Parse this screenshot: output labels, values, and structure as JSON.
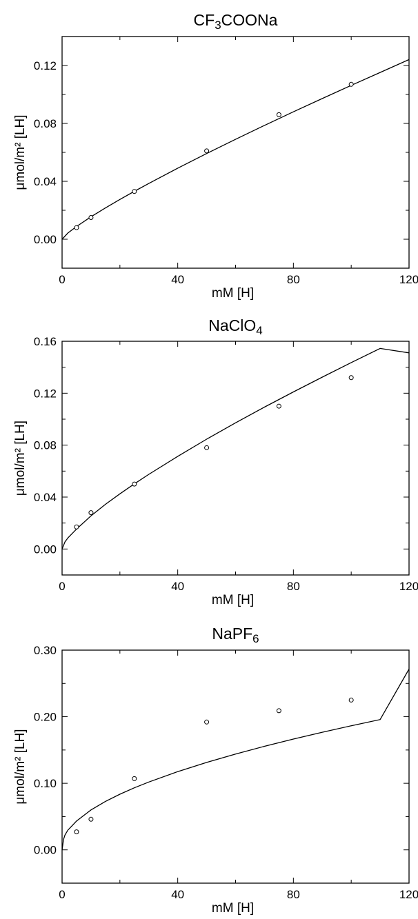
{
  "chart_data": [
    {
      "type": "scatter",
      "title": "CF3COONa",
      "title_parts": [
        {
          "text": "CF",
          "sub": false
        },
        {
          "text": "3",
          "sub": true
        },
        {
          "text": "COONa",
          "sub": false
        }
      ],
      "xlabel": "mM [H]",
      "ylabel": "μmol/m² [LH]",
      "xlim": [
        0,
        120
      ],
      "ylim": [
        -0.02,
        0.14
      ],
      "xticks": [
        0,
        40,
        80,
        120
      ],
      "xtick_labels": [
        "0",
        "40",
        "80",
        "120"
      ],
      "yticks": [
        0.0,
        0.04,
        0.08,
        0.12
      ],
      "ytick_labels": [
        "0.00",
        "0.04",
        "0.08",
        "0.12"
      ],
      "grid": false,
      "points": {
        "x": [
          5,
          10,
          25,
          50,
          75,
          100
        ],
        "y": [
          0.008,
          0.015,
          0.033,
          0.061,
          0.086,
          0.107
        ]
      },
      "fit": {
        "x": [
          0,
          2,
          5,
          10,
          15,
          20,
          25,
          30,
          40,
          50,
          60,
          70,
          80,
          90,
          100,
          110,
          120
        ],
        "y": [
          0.0,
          0.0043,
          0.0088,
          0.0155,
          0.0216,
          0.0275,
          0.0331,
          0.0385,
          0.0491,
          0.0592,
          0.069,
          0.0786,
          0.088,
          0.0972,
          0.1063,
          0.1152,
          0.1241
        ]
      }
    },
    {
      "type": "scatter",
      "title": "NaClO4",
      "title_parts": [
        {
          "text": "NaClO",
          "sub": false
        },
        {
          "text": "4",
          "sub": true
        }
      ],
      "xlabel": "mM [H]",
      "ylabel": "μmol/m² [LH]",
      "xlim": [
        0,
        120
      ],
      "ylim": [
        -0.02,
        0.16
      ],
      "xticks": [
        0,
        40,
        80,
        120
      ],
      "xtick_labels": [
        "0",
        "40",
        "80",
        "120"
      ],
      "yticks": [
        0.0,
        0.04,
        0.08,
        0.12,
        0.16
      ],
      "ytick_labels": [
        "0.00",
        "0.04",
        "0.08",
        "0.12",
        "0.16"
      ],
      "grid": false,
      "points": {
        "x": [
          5,
          10,
          25,
          50,
          75,
          100
        ],
        "y": [
          0.017,
          0.028,
          0.05,
          0.078,
          0.11,
          0.132
        ]
      },
      "fit": {
        "x": [
          0,
          1,
          2,
          5,
          10,
          15,
          20,
          25,
          30,
          40,
          50,
          60,
          70,
          80,
          90,
          100,
          110,
          120
        ],
        "y": [
          0.0,
          0.0055,
          0.0085,
          0.0154,
          0.0255,
          0.0344,
          0.0425,
          0.0502,
          0.0575,
          0.0714,
          0.0846,
          0.0972,
          0.1093,
          0.121,
          0.1324,
          0.1436,
          0.1545,
          0.1511
        ]
      }
    },
    {
      "type": "scatter",
      "title": "NaPF6",
      "title_parts": [
        {
          "text": "NaPF",
          "sub": false
        },
        {
          "text": "6",
          "sub": true
        }
      ],
      "xlabel": "mM [H]",
      "ylabel": "μmol/m² [LH]",
      "xlim": [
        0,
        120
      ],
      "ylim": [
        -0.05,
        0.3
      ],
      "xticks": [
        0,
        40,
        80,
        120
      ],
      "xtick_labels": [
        "0",
        "40",
        "80",
        "120"
      ],
      "yticks": [
        0.0,
        0.1,
        0.2,
        0.3
      ],
      "ytick_labels": [
        "0.00",
        "0.10",
        "0.20",
        "0.30"
      ],
      "grid": false,
      "points": {
        "x": [
          5,
          10,
          25,
          50,
          75,
          100
        ],
        "y": [
          0.027,
          0.046,
          0.107,
          0.192,
          0.209,
          0.225
        ]
      },
      "fit": {
        "x": [
          0,
          0.5,
          1,
          2,
          5,
          10,
          15,
          20,
          25,
          30,
          40,
          50,
          60,
          70,
          80,
          90,
          100,
          110,
          120
        ],
        "y": [
          0.0,
          0.0158,
          0.0223,
          0.0296,
          0.0433,
          0.06,
          0.0728,
          0.0836,
          0.0932,
          0.1019,
          0.1175,
          0.1313,
          0.1439,
          0.1555,
          0.1664,
          0.1767,
          0.1864,
          0.1957,
          0.2715
        ]
      }
    }
  ]
}
